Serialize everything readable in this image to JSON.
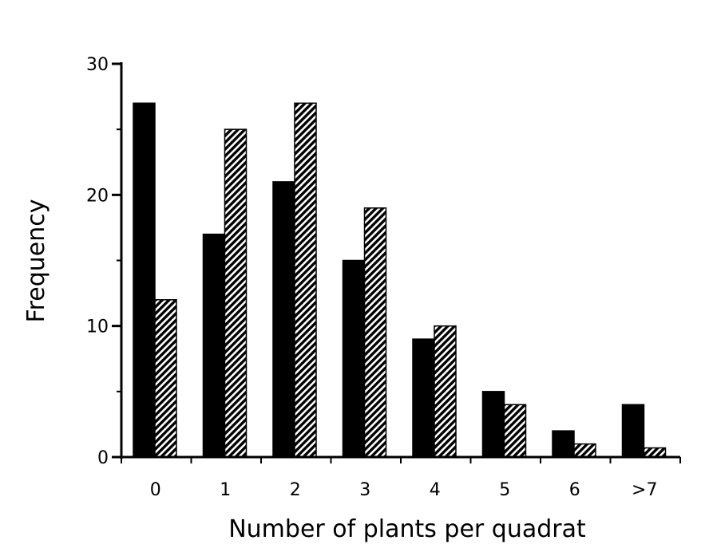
{
  "chart_data": {
    "type": "bar",
    "title": "",
    "xlabel": "Number of plants per quadrat",
    "ylabel": "Frequency",
    "categories": [
      "0",
      "1",
      "2",
      "3",
      "4",
      "5",
      "6",
      ">7"
    ],
    "series": [
      {
        "values": [
          27,
          17,
          21,
          15,
          9,
          5,
          2,
          4
        ],
        "color": "#000000",
        "fill": "solid"
      },
      {
        "values": [
          12,
          25,
          27,
          19,
          10,
          4,
          1,
          0.7
        ],
        "color": "#000000",
        "fill": "hatched"
      }
    ],
    "yticks": [
      0,
      10,
      20,
      30
    ],
    "ylim": [
      0,
      30
    ],
    "grid": false,
    "legend": "none"
  }
}
